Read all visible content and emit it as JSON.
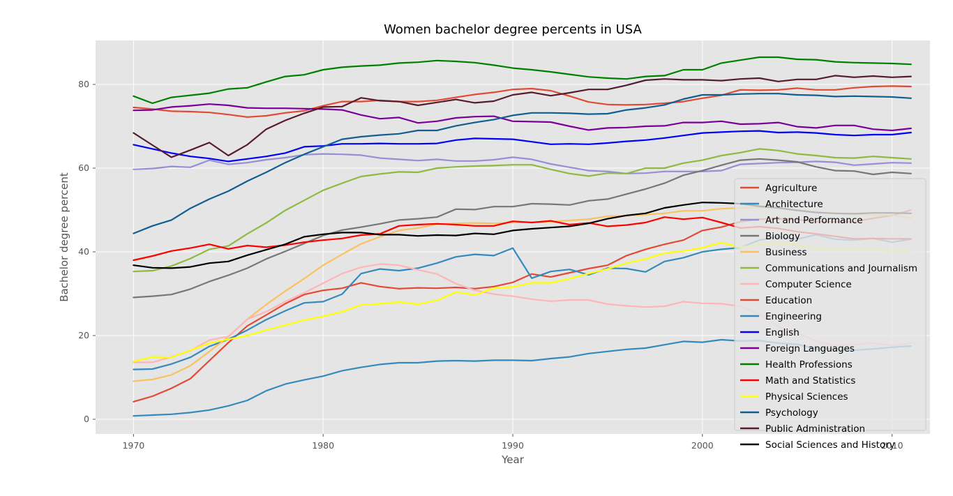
{
  "chart_data": {
    "type": "line",
    "title": "Women bachelor degree percents in USA",
    "xlabel": "Year",
    "ylabel": "Bachelor degree percent",
    "xlim": [
      1968,
      2012
    ],
    "ylim": [
      -3.5,
      90.5
    ],
    "xticks": [
      1970,
      1980,
      1990,
      2000,
      2010
    ],
    "yticks": [
      0,
      20,
      40,
      60,
      80
    ],
    "grid": true,
    "legend_position": "right",
    "x": [
      1970,
      1971,
      1972,
      1973,
      1974,
      1975,
      1976,
      1977,
      1978,
      1979,
      1980,
      1981,
      1982,
      1983,
      1984,
      1985,
      1986,
      1987,
      1988,
      1989,
      1990,
      1991,
      1992,
      1993,
      1994,
      1995,
      1996,
      1997,
      1998,
      1999,
      2000,
      2001,
      2002,
      2003,
      2004,
      2005,
      2006,
      2007,
      2008,
      2009,
      2010,
      2011
    ],
    "series": [
      {
        "name": "Agriculture",
        "color": "#e24a33",
        "values": [
          4.2,
          5.5,
          7.4,
          9.7,
          14.0,
          18.3,
          22.3,
          24.9,
          27.6,
          29.8,
          30.8,
          31.3,
          32.6,
          31.7,
          31.2,
          31.4,
          31.3,
          31.5,
          31.2,
          31.7,
          32.7,
          34.7,
          34.0,
          35.0,
          36.0,
          36.8,
          39.1,
          40.6,
          41.8,
          42.8,
          45.1,
          45.9,
          47.2,
          47.8,
          47.9,
          47.7,
          47.2,
          47.2,
          47.2,
          48.0,
          48.7,
          50.0
        ]
      },
      {
        "name": "Architecture",
        "color": "#348abd",
        "values": [
          11.9,
          12.0,
          13.2,
          14.8,
          17.4,
          19.1,
          21.3,
          23.8,
          25.9,
          27.8,
          28.1,
          29.9,
          34.8,
          35.9,
          35.5,
          36.1,
          37.3,
          38.8,
          39.4,
          39.1,
          40.9,
          33.7,
          35.3,
          35.8,
          34.5,
          36.1,
          36.0,
          35.2,
          37.7,
          38.6,
          40.0,
          40.6,
          41.0,
          42.8,
          43.6,
          43.0,
          44.1,
          43.0,
          42.8,
          43.2,
          42.3,
          43.0
        ]
      },
      {
        "name": "Art and Performance",
        "color": "#988ed5",
        "values": [
          59.7,
          59.9,
          60.4,
          60.2,
          61.9,
          60.9,
          61.3,
          62.0,
          62.5,
          63.2,
          63.4,
          63.3,
          63.1,
          62.4,
          62.1,
          61.8,
          62.1,
          61.7,
          61.7,
          62.0,
          62.6,
          62.1,
          61.0,
          60.2,
          59.4,
          59.2,
          58.7,
          58.8,
          59.2,
          59.2,
          59.2,
          59.4,
          60.9,
          61.1,
          61.3,
          61.4,
          61.6,
          61.4,
          60.7,
          61.0,
          61.3,
          61.2
        ]
      },
      {
        "name": "Biology",
        "color": "#777777",
        "values": [
          29.1,
          29.4,
          29.8,
          31.1,
          32.9,
          34.4,
          36.1,
          38.3,
          40.1,
          42.0,
          43.9,
          45.2,
          45.9,
          46.7,
          47.6,
          47.9,
          48.3,
          50.2,
          50.1,
          50.8,
          50.8,
          51.5,
          51.4,
          51.2,
          52.2,
          52.6,
          53.8,
          55.0,
          56.4,
          58.3,
          59.4,
          60.7,
          61.9,
          62.2,
          61.9,
          61.5,
          60.3,
          59.4,
          59.3,
          58.5,
          59.0,
          58.7
        ]
      },
      {
        "name": "Business",
        "color": "#fbc15e",
        "values": [
          9.1,
          9.5,
          10.6,
          12.8,
          16.2,
          19.7,
          23.9,
          27.4,
          30.6,
          33.6,
          36.8,
          39.4,
          41.9,
          43.6,
          45.1,
          45.7,
          46.6,
          46.8,
          46.9,
          46.8,
          47.0,
          47.1,
          47.2,
          47.5,
          47.8,
          48.5,
          48.6,
          48.9,
          49.2,
          49.8,
          49.8,
          50.3,
          50.5,
          50.6,
          50.5,
          50.0,
          49.6,
          49.1,
          48.9,
          48.8,
          48.8,
          48.1
        ]
      },
      {
        "name": "Communications and Journalism",
        "color": "#8eba42",
        "values": [
          35.3,
          35.5,
          36.6,
          38.4,
          40.6,
          41.4,
          44.3,
          46.9,
          49.9,
          52.3,
          54.7,
          56.4,
          58.0,
          58.6,
          59.1,
          59.0,
          60.0,
          60.3,
          60.5,
          60.6,
          60.8,
          60.8,
          59.7,
          58.7,
          58.1,
          58.8,
          58.7,
          60.0,
          60.0,
          61.2,
          61.9,
          63.0,
          63.7,
          64.6,
          64.2,
          63.4,
          63.0,
          62.5,
          62.4,
          62.8,
          62.5,
          62.2
        ]
      },
      {
        "name": "Computer Science",
        "color": "#ffb5b8",
        "values": [
          13.6,
          13.6,
          14.9,
          16.4,
          18.9,
          19.8,
          23.9,
          25.7,
          28.1,
          30.2,
          32.5,
          34.8,
          36.3,
          37.1,
          36.8,
          35.7,
          34.7,
          32.4,
          30.8,
          29.9,
          29.4,
          28.7,
          28.2,
          28.5,
          28.5,
          27.5,
          27.1,
          26.8,
          27.0,
          28.1,
          27.7,
          27.6,
          27.0,
          25.1,
          22.2,
          20.6,
          18.6,
          17.6,
          17.8,
          18.2,
          17.6,
          18.2
        ]
      },
      {
        "name": "Education",
        "color": "#e24a33",
        "values": [
          74.5,
          74.1,
          73.6,
          73.5,
          73.3,
          72.8,
          72.2,
          72.5,
          73.2,
          73.7,
          74.9,
          75.9,
          75.9,
          76.2,
          75.9,
          75.9,
          76.2,
          76.9,
          77.6,
          78.1,
          78.8,
          79.0,
          78.5,
          77.2,
          75.8,
          75.2,
          75.1,
          75.2,
          75.5,
          75.9,
          76.7,
          77.4,
          78.7,
          78.6,
          78.7,
          79.1,
          78.7,
          78.7,
          79.2,
          79.5,
          79.6,
          79.5
        ]
      },
      {
        "name": "Engineering",
        "color": "#348abd",
        "values": [
          0.8,
          1.0,
          1.2,
          1.6,
          2.2,
          3.2,
          4.5,
          6.8,
          8.4,
          9.4,
          10.3,
          11.6,
          12.4,
          13.1,
          13.5,
          13.5,
          13.9,
          14.0,
          13.9,
          14.1,
          14.1,
          14.0,
          14.5,
          14.9,
          15.7,
          16.2,
          16.7,
          17.0,
          17.8,
          18.6,
          18.4,
          19.0,
          18.7,
          18.8,
          18.2,
          17.9,
          16.8,
          16.8,
          16.5,
          16.8,
          17.2,
          17.5
        ]
      },
      {
        "name": "English",
        "color": "#0000ff",
        "values": [
          65.6,
          64.6,
          63.6,
          62.8,
          62.3,
          61.6,
          62.2,
          62.8,
          63.6,
          65.1,
          65.3,
          65.8,
          65.8,
          65.9,
          65.8,
          65.8,
          65.9,
          66.7,
          67.1,
          67.0,
          66.9,
          66.3,
          65.7,
          65.8,
          65.7,
          66.0,
          66.4,
          66.7,
          67.2,
          67.8,
          68.4,
          68.6,
          68.8,
          68.9,
          68.5,
          68.6,
          68.4,
          68.0,
          67.8,
          68.0,
          68.0,
          68.5
        ]
      },
      {
        "name": "Foreign Languages",
        "color": "#7b0099",
        "values": [
          73.8,
          73.9,
          74.6,
          74.9,
          75.3,
          75.0,
          74.4,
          74.3,
          74.3,
          74.2,
          74.1,
          73.9,
          72.7,
          71.8,
          72.1,
          70.8,
          71.2,
          72.0,
          72.3,
          72.4,
          71.2,
          71.1,
          71.0,
          70.0,
          69.1,
          69.6,
          69.7,
          70.0,
          70.1,
          70.9,
          70.9,
          71.2,
          70.5,
          70.6,
          70.9,
          69.9,
          69.6,
          70.2,
          70.2,
          69.3,
          69.0,
          69.5
        ]
      },
      {
        "name": "Health Professions",
        "color": "#008000",
        "values": [
          77.2,
          75.5,
          76.9,
          77.4,
          77.9,
          78.9,
          79.2,
          80.6,
          81.9,
          82.3,
          83.5,
          84.1,
          84.4,
          84.6,
          85.1,
          85.3,
          85.7,
          85.5,
          85.2,
          84.6,
          83.9,
          83.5,
          83.0,
          82.4,
          81.8,
          81.5,
          81.3,
          81.9,
          82.1,
          83.5,
          83.5,
          85.1,
          85.8,
          86.5,
          86.5,
          86.0,
          85.9,
          85.4,
          85.2,
          85.1,
          85.0,
          84.8
        ]
      },
      {
        "name": "Math and Statistics",
        "color": "#ff0000",
        "values": [
          38.0,
          39.0,
          40.2,
          40.9,
          41.8,
          40.7,
          41.5,
          41.1,
          41.6,
          42.3,
          42.8,
          43.2,
          44.0,
          44.3,
          46.2,
          46.5,
          46.7,
          46.5,
          46.2,
          46.2,
          47.3,
          47.0,
          47.4,
          46.5,
          46.9,
          46.1,
          46.4,
          47.0,
          48.3,
          47.8,
          48.2,
          47.0,
          45.7,
          46.0,
          45.6,
          44.8,
          44.3,
          43.7,
          43.1,
          43.2,
          43.1,
          43.1
        ]
      },
      {
        "name": "Physical Sciences",
        "color": "#ffff00",
        "values": [
          13.8,
          14.9,
          14.8,
          16.5,
          18.2,
          19.1,
          20.0,
          21.3,
          22.5,
          23.7,
          24.6,
          25.7,
          27.3,
          27.6,
          28.0,
          27.5,
          28.4,
          30.4,
          29.7,
          31.3,
          31.6,
          32.6,
          32.6,
          33.6,
          34.8,
          35.9,
          37.3,
          38.3,
          39.7,
          40.2,
          41.0,
          42.2,
          41.1,
          41.7,
          42.1,
          41.6,
          40.8,
          40.7,
          40.7,
          40.7,
          40.2,
          40.1
        ]
      },
      {
        "name": "Psychology",
        "color": "#115e91",
        "values": [
          44.4,
          46.2,
          47.6,
          50.4,
          52.6,
          54.5,
          56.9,
          59.0,
          61.3,
          63.3,
          65.1,
          66.9,
          67.5,
          67.9,
          68.2,
          69.0,
          69.0,
          70.1,
          70.9,
          71.6,
          72.6,
          73.2,
          73.2,
          73.1,
          72.9,
          73.0,
          73.9,
          74.4,
          75.1,
          76.5,
          77.5,
          77.5,
          77.7,
          77.8,
          77.8,
          77.5,
          77.4,
          77.1,
          77.2,
          77.1,
          77.0,
          76.7
        ]
      },
      {
        "name": "Public Administration",
        "color": "#561c2e",
        "values": [
          68.4,
          65.5,
          62.6,
          64.3,
          66.1,
          63.0,
          65.6,
          69.3,
          71.4,
          73.1,
          74.6,
          74.7,
          76.8,
          76.1,
          75.9,
          75.0,
          75.7,
          76.4,
          75.6,
          76.0,
          77.5,
          78.1,
          77.3,
          78.0,
          78.8,
          78.8,
          79.8,
          81.0,
          81.3,
          81.1,
          81.1,
          80.9,
          81.3,
          81.5,
          80.7,
          81.2,
          81.2,
          82.1,
          81.7,
          82.0,
          81.7,
          81.9
        ]
      },
      {
        "name": "Social Sciences and History",
        "color": "#000000",
        "values": [
          36.8,
          36.2,
          36.1,
          36.4,
          37.3,
          37.7,
          39.2,
          40.5,
          41.8,
          43.6,
          44.2,
          44.6,
          44.6,
          44.1,
          44.1,
          43.8,
          44.0,
          43.9,
          44.4,
          44.2,
          45.1,
          45.5,
          45.8,
          46.1,
          46.8,
          47.9,
          48.7,
          49.2,
          50.5,
          51.2,
          51.8,
          51.7,
          51.5,
          50.9,
          50.5,
          49.9,
          49.4,
          49.2,
          49.1,
          49.3,
          49.3,
          49.2
        ]
      }
    ]
  }
}
